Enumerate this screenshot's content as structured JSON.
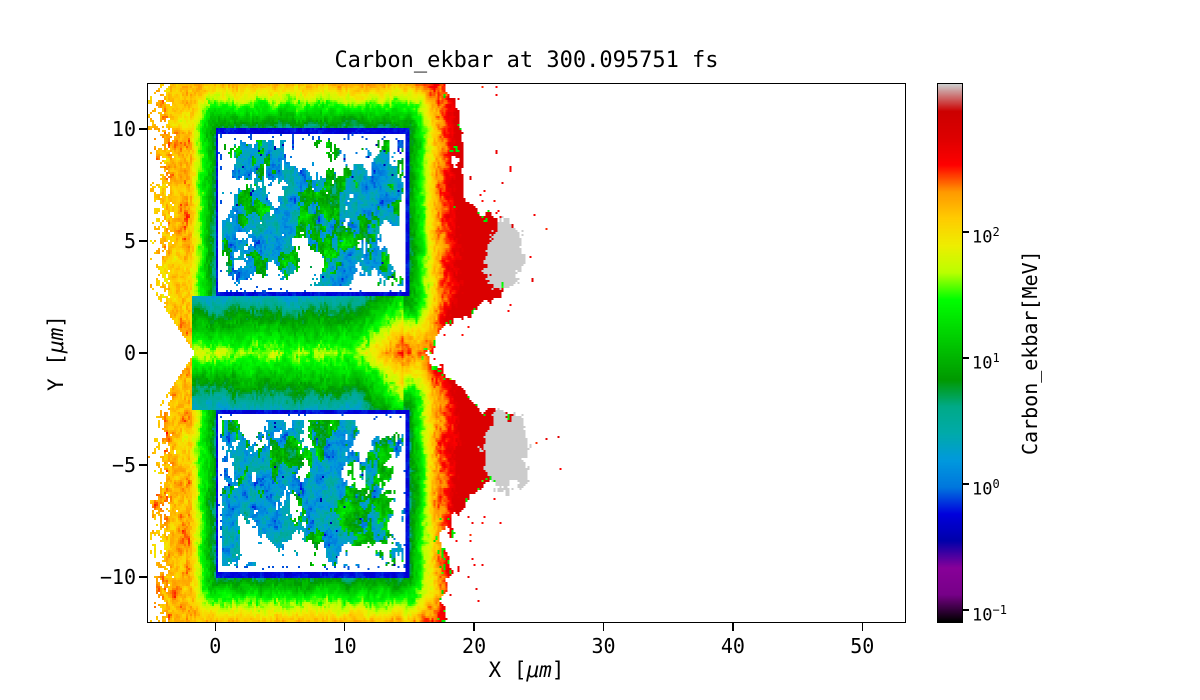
{
  "chart_data": {
    "type": "heatmap",
    "title": "Carbon_ekbar at 300.095751 fs",
    "xlabel": {
      "pre": "X [",
      "math": "μm",
      "post": "]"
    },
    "ylabel": {
      "pre": "Y [",
      "math": "μm",
      "post": "]"
    },
    "xlim": [
      -5.2,
      53.3
    ],
    "ylim": [
      -12,
      12
    ],
    "xticks": [
      {
        "v": 0,
        "label": "0"
      },
      {
        "v": 10,
        "label": "10"
      },
      {
        "v": 20,
        "label": "20"
      },
      {
        "v": 30,
        "label": "30"
      },
      {
        "v": 40,
        "label": "40"
      },
      {
        "v": 50,
        "label": "50"
      }
    ],
    "yticks": [
      {
        "v": 10,
        "label": "10"
      },
      {
        "v": 5,
        "label": "5"
      },
      {
        "v": 0,
        "label": "0"
      },
      {
        "v": -5,
        "label": "−5"
      },
      {
        "v": -10,
        "label": "−10"
      }
    ],
    "grid": false,
    "colorbar": {
      "label": "Carbon_ekbar[MeV]",
      "scale": "log",
      "vmin": 0.08,
      "vmax": 1500,
      "ticks": [
        {
          "value": 100,
          "mantissa": "10",
          "exponent": "2"
        },
        {
          "value": 10,
          "mantissa": "10",
          "exponent": "1"
        },
        {
          "value": 1,
          "mantissa": "10",
          "exponent": "0"
        },
        {
          "value": 0.1,
          "mantissa": "10",
          "exponent": "−1"
        }
      ],
      "colormap": "nipy_spectral",
      "stops": [
        [
          0.0,
          0.0,
          0.0,
          0.0
        ],
        [
          0.05,
          0.4667,
          0.0,
          0.5333
        ],
        [
          0.1,
          0.5333,
          0.0,
          0.6
        ],
        [
          0.15,
          0.0,
          0.0,
          0.6667
        ],
        [
          0.2,
          0.0,
          0.0,
          0.8667
        ],
        [
          0.25,
          0.0,
          0.4667,
          0.8667
        ],
        [
          0.3,
          0.0,
          0.6,
          0.8667
        ],
        [
          0.35,
          0.0,
          0.6667,
          0.6667
        ],
        [
          0.4,
          0.0,
          0.6667,
          0.5333
        ],
        [
          0.45,
          0.0,
          0.6,
          0.0
        ],
        [
          0.5,
          0.0,
          0.7333,
          0.0
        ],
        [
          0.55,
          0.0,
          0.8667,
          0.0
        ],
        [
          0.6,
          0.0,
          1.0,
          0.0
        ],
        [
          0.65,
          0.7333,
          1.0,
          0.0
        ],
        [
          0.7,
          0.9333,
          0.9333,
          0.0
        ],
        [
          0.75,
          1.0,
          0.8,
          0.0
        ],
        [
          0.8,
          1.0,
          0.6,
          0.0
        ],
        [
          0.85,
          1.0,
          0.0,
          0.0
        ],
        [
          0.9,
          0.8667,
          0.0,
          0.0
        ],
        [
          0.95,
          0.8,
          0.0,
          0.0
        ],
        [
          1.0,
          0.8,
          0.8,
          0.8
        ]
      ]
    },
    "features": {
      "targets": [
        {
          "x": [
            0,
            15
          ],
          "y": [
            2.5,
            10
          ],
          "border_mev": 0.4,
          "interior_speckle_mev": [
            0.5,
            20
          ]
        },
        {
          "x": [
            0,
            15
          ],
          "y": [
            -10,
            -2.5
          ],
          "border_mev": 0.4,
          "interior_speckle_mev": [
            0.5,
            20
          ]
        }
      ],
      "halo_gradient_mev": {
        "at_target_edge": 8,
        "at_2um": 160,
        "at_4um_plus": 600
      },
      "hot_front": {
        "x_range": [
          15,
          25
        ],
        "mev": [
          250,
          700
        ]
      },
      "gray_hotspots": [
        {
          "center": [
            22.3,
            4.3
          ],
          "radius": 1.7,
          "mev": 1500
        },
        {
          "center": [
            22.5,
            -4.4
          ],
          "radius": 1.9,
          "mev": 1500
        }
      ],
      "midplane_channel": {
        "y": [
          -2.5,
          2.5
        ],
        "x": [
          -1.8,
          14.6
        ],
        "mev": [
          3,
          60
        ]
      },
      "vacuum_regions": [
        "target interiors (white holes)",
        "beyond ragged expansion front at x ≈ 19–25 μm",
        "left notch near y = 0 for x < −1.6 μm"
      ]
    }
  }
}
